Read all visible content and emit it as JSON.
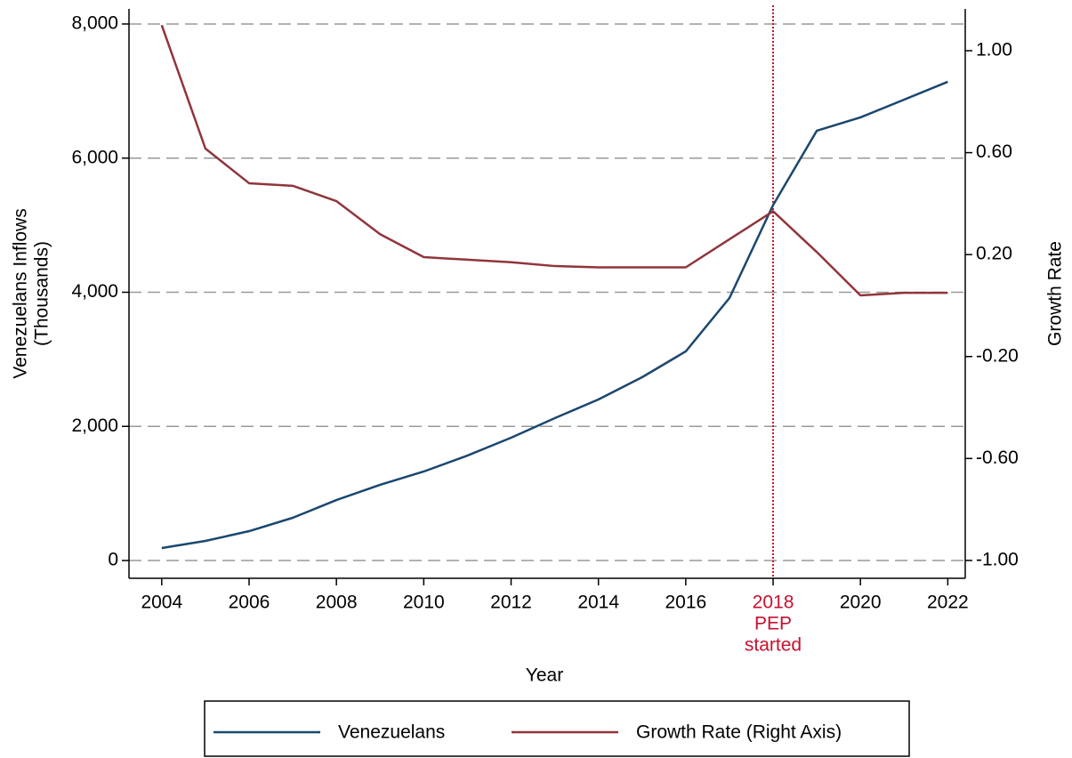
{
  "chart_data": {
    "type": "line",
    "xlabel": "Year",
    "ylabel": [
      "Venezuelans Inflows",
      "(Thousands)"
    ],
    "y2label": "Growth Rate",
    "x": [
      2004,
      2005,
      2006,
      2007,
      2008,
      2009,
      2010,
      2011,
      2012,
      2013,
      2014,
      2015,
      2016,
      2017,
      2018,
      2019,
      2020,
      2021,
      2022
    ],
    "series": [
      {
        "name": "Venezuelans",
        "color": "#1a476f",
        "values": [
          186,
          292,
          438,
          637,
          902,
          1128,
          1327,
          1565,
          1831,
          2123,
          2401,
          2733,
          3118,
          3914,
          5300,
          6408,
          6607,
          6872,
          7138
        ]
      },
      {
        "name": "Growth Rate (Right Axis)",
        "color": "#90353b",
        "axis": "y2",
        "values": [
          1.1,
          0.616,
          0.48,
          0.47,
          0.41,
          0.28,
          0.19,
          0.18,
          0.17,
          0.155,
          0.15,
          0.15,
          0.15,
          0.26,
          0.37,
          0.21,
          0.04,
          0.05,
          0.05
        ]
      }
    ],
    "xlim": [
      2003.25,
      2022.4
    ],
    "xticks": [
      2004,
      2006,
      2008,
      2010,
      2012,
      2014,
      2016,
      2020,
      2022
    ],
    "ylim": [
      -265,
      8225
    ],
    "yticks": [
      0,
      {
        "value": 2000,
        "label": "2,000"
      },
      {
        "value": 4000,
        "label": "4,000"
      },
      {
        "value": 6000,
        "label": "6,000"
      },
      {
        "value": 8000,
        "label": "8,000"
      }
    ],
    "y2lim": [
      -1.07,
      1.164
    ],
    "y2ticks": [
      {
        "value": -1,
        "label": "-1.00"
      },
      {
        "value": -0.6,
        "label": "-0.60"
      },
      {
        "value": -0.2,
        "label": "-0.20"
      },
      {
        "value": 0.2,
        "label": "0.20"
      },
      {
        "value": 0.6,
        "label": "0.60"
      },
      {
        "value": 1,
        "label": "1.00"
      }
    ],
    "grid": true,
    "legend": "bottom",
    "annotation": {
      "x": 2018,
      "text": [
        "2018",
        "PEP",
        "started"
      ],
      "color": "#c8102e"
    }
  }
}
